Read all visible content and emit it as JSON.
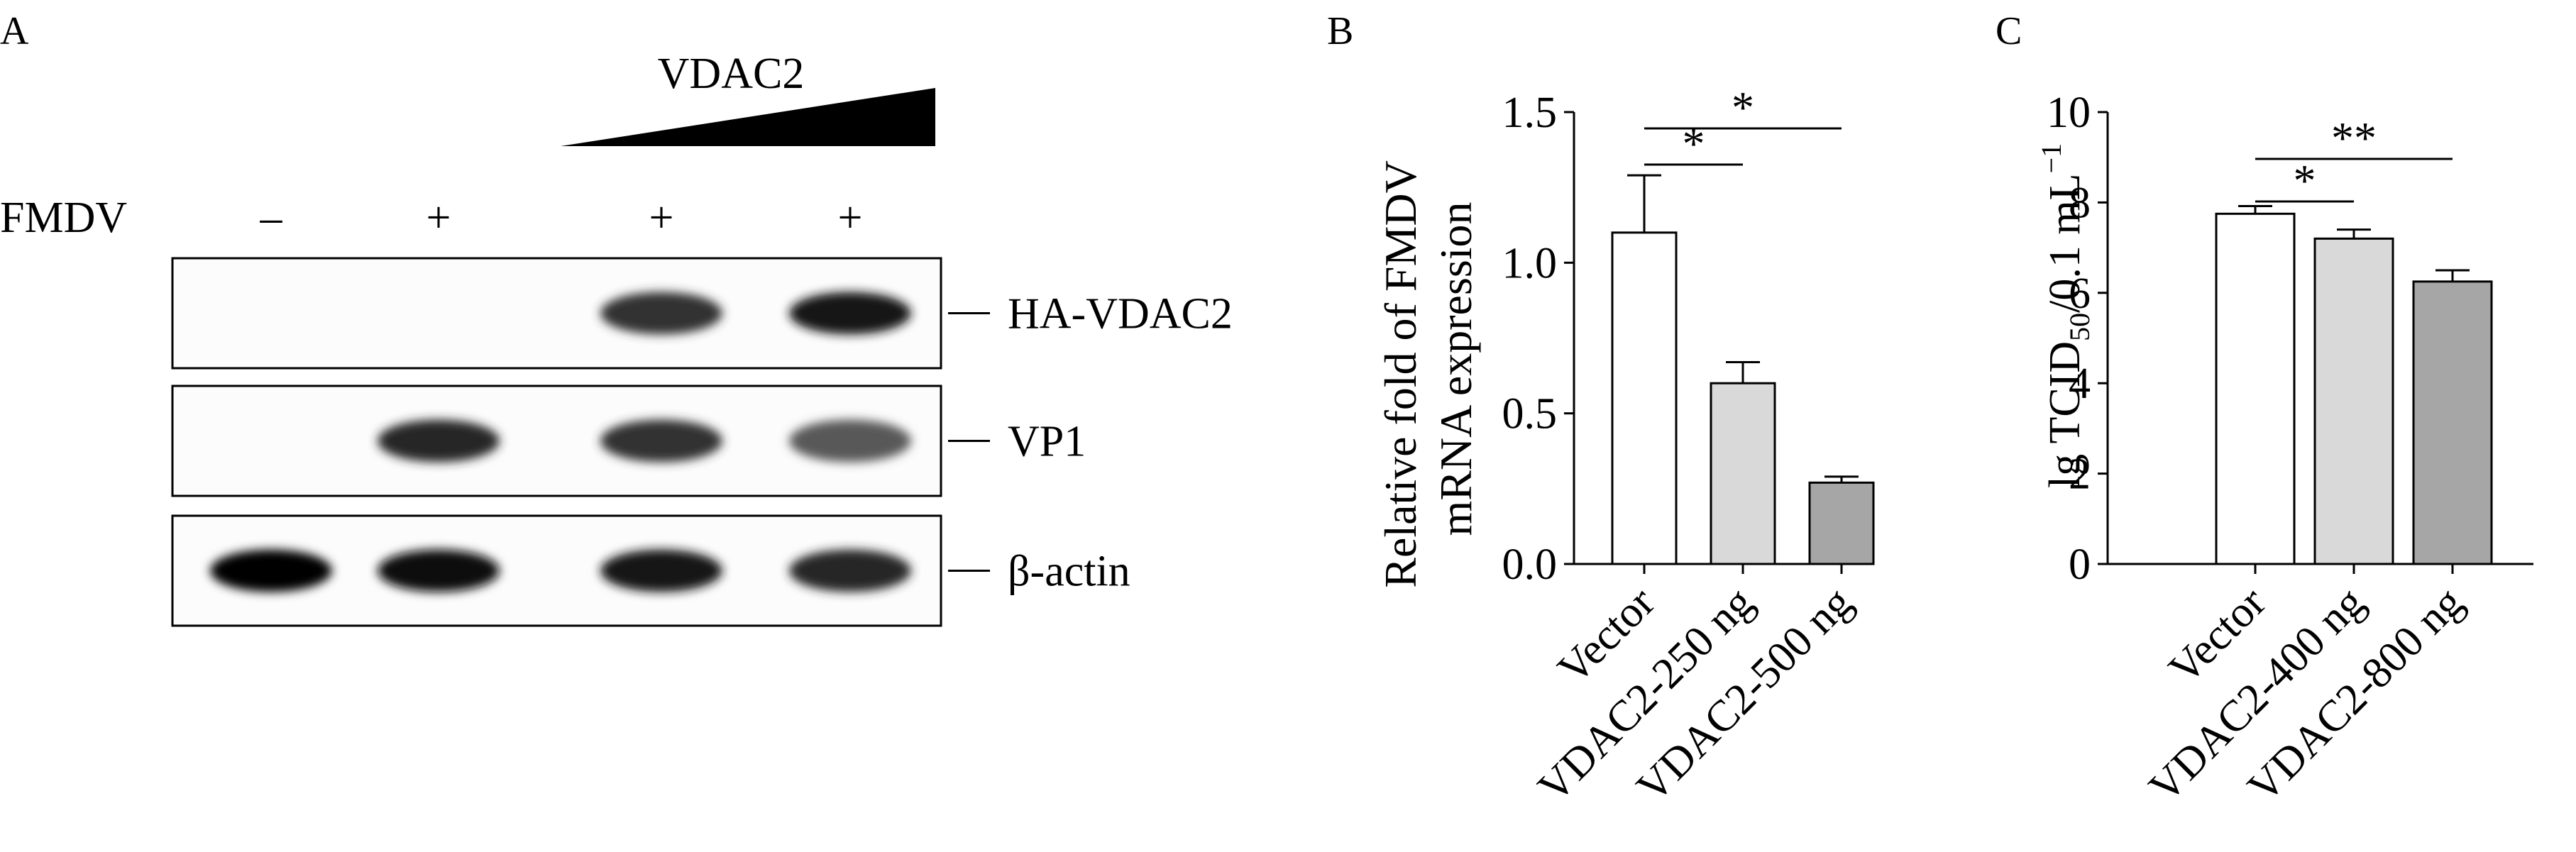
{
  "panel_a": {
    "letter": "A",
    "treatment_label": "VDAC2",
    "row_label": "FMDV",
    "lanes": [
      "–",
      "+",
      "+",
      "+"
    ],
    "bands": [
      {
        "label": "HA-VDAC2",
        "intensities": [
          0,
          0,
          0.8,
          0.9
        ]
      },
      {
        "label": "VP1",
        "intensities": [
          0,
          0.85,
          0.8,
          0.65
        ]
      },
      {
        "label": "β-actin",
        "intensities": [
          1,
          0.95,
          0.9,
          0.85
        ]
      }
    ]
  },
  "chart_data": [
    {
      "type": "bar",
      "panel": "B",
      "categories": [
        "Vector",
        "VDAC2-250 ng",
        "VDAC2-500 ng"
      ],
      "values": [
        1.1,
        0.6,
        0.27
      ],
      "errors": [
        0.19,
        0.07,
        0.02
      ],
      "bar_colors": [
        "#ffffff",
        "#d9d9d9",
        "#a6a6a6"
      ],
      "ylabel_lines": [
        "Relative fold of FMDV",
        "mRNA expression"
      ],
      "ylim": [
        0,
        1.5
      ],
      "yticks": [
        "0.0",
        "0.5",
        "1.0",
        "1.5"
      ],
      "significance": [
        {
          "from": 0,
          "to": 1,
          "label": "*"
        },
        {
          "from": 0,
          "to": 2,
          "label": "*"
        }
      ]
    },
    {
      "type": "bar",
      "panel": "C",
      "categories": [
        "Vector",
        "VDAC2-400 ng",
        "VDAC2-800 ng"
      ],
      "values": [
        7.75,
        7.2,
        6.25
      ],
      "errors": [
        0.17,
        0.2,
        0.25
      ],
      "bar_colors": [
        "#ffffff",
        "#d9d9d9",
        "#a6a6a6"
      ],
      "ylabel": {
        "main": "lg TCID",
        "sub": "50",
        "rest": "/0.1 mL",
        "sup": "−1"
      },
      "ylim": [
        0,
        10
      ],
      "yticks": [
        "0",
        "2",
        "4",
        "6",
        "8",
        "10"
      ],
      "significance": [
        {
          "from": 0,
          "to": 1,
          "label": "*"
        },
        {
          "from": 0,
          "to": 2,
          "label": "**"
        }
      ]
    }
  ]
}
